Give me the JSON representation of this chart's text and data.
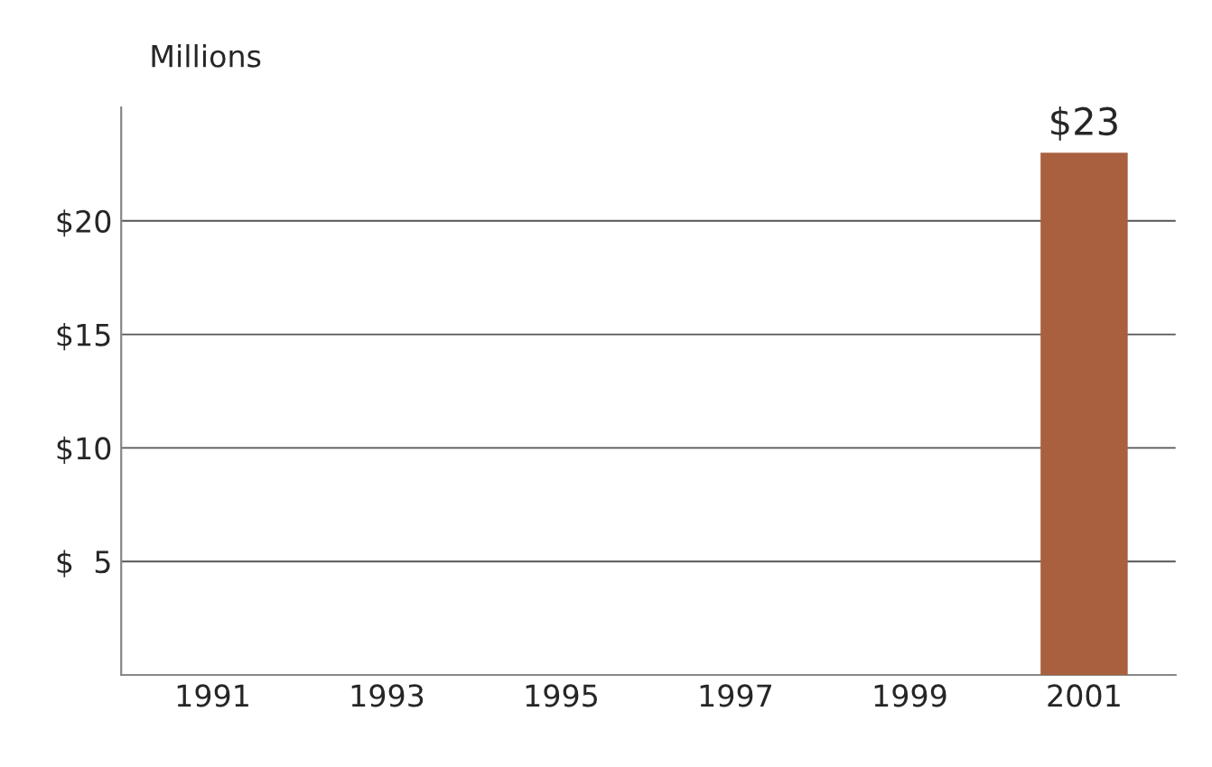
{
  "chart_data": {
    "type": "bar",
    "ylabel": "Millions",
    "categories": [
      "1991",
      "1993",
      "1995",
      "1997",
      "1999",
      "2001"
    ],
    "values": [
      0,
      0,
      0,
      0,
      0,
      23
    ],
    "color": "#a8603f",
    "value_labels": [
      null,
      null,
      null,
      null,
      null,
      "$23"
    ],
    "ylim": [
      0,
      25
    ],
    "yticks": [
      {
        "value": 5,
        "label": "$  5"
      },
      {
        "value": 10,
        "label": "$10"
      },
      {
        "value": 15,
        "label": "$15"
      },
      {
        "value": 20,
        "label": "$20"
      }
    ],
    "grid": "y",
    "legend": false
  }
}
